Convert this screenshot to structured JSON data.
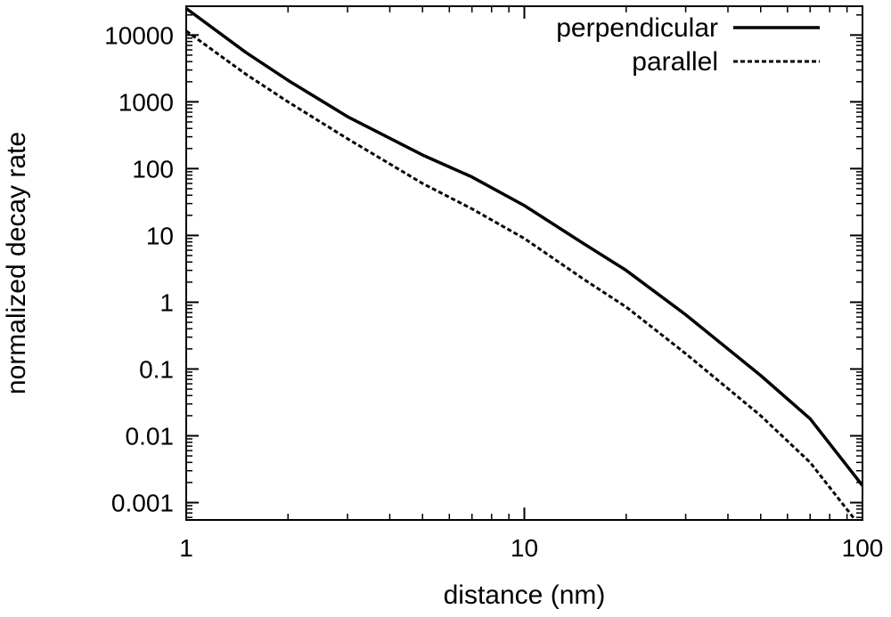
{
  "chart_data": {
    "type": "line",
    "xlabel": "distance (nm)",
    "ylabel": "normalized decay rate",
    "xscale": "log",
    "yscale": "log",
    "xlim": [
      1,
      100
    ],
    "ylim": [
      0.00055,
      27000
    ],
    "xticks": [
      1,
      10,
      100
    ],
    "xtick_labels": [
      "1",
      "10",
      "100"
    ],
    "yticks": [
      10000,
      1000,
      100,
      10,
      1,
      0.1,
      0.01,
      0.001
    ],
    "ytick_labels": [
      "10000",
      "1000",
      "100",
      "10",
      "1",
      "0.1",
      "0.01",
      "0.001"
    ],
    "grid": false,
    "legend_position": "top-right",
    "series": [
      {
        "name": "perpendicular",
        "line_style": "solid",
        "color": "#000000",
        "x": [
          1,
          1.5,
          2,
          3,
          5,
          7,
          10,
          15,
          20,
          30,
          50,
          70,
          100
        ],
        "y": [
          25000,
          5500,
          2100,
          600,
          160,
          75,
          28,
          7.5,
          3,
          0.65,
          0.08,
          0.018,
          0.0018
        ]
      },
      {
        "name": "parallel",
        "line_style": "dashed",
        "color": "#000000",
        "x": [
          1,
          1.5,
          2,
          3,
          5,
          7,
          10,
          15,
          20,
          30,
          50,
          70,
          100
        ],
        "y": [
          11500,
          2600,
          1000,
          280,
          60,
          25,
          9,
          2.2,
          0.85,
          0.17,
          0.02,
          0.004,
          0.0004
        ]
      }
    ]
  }
}
